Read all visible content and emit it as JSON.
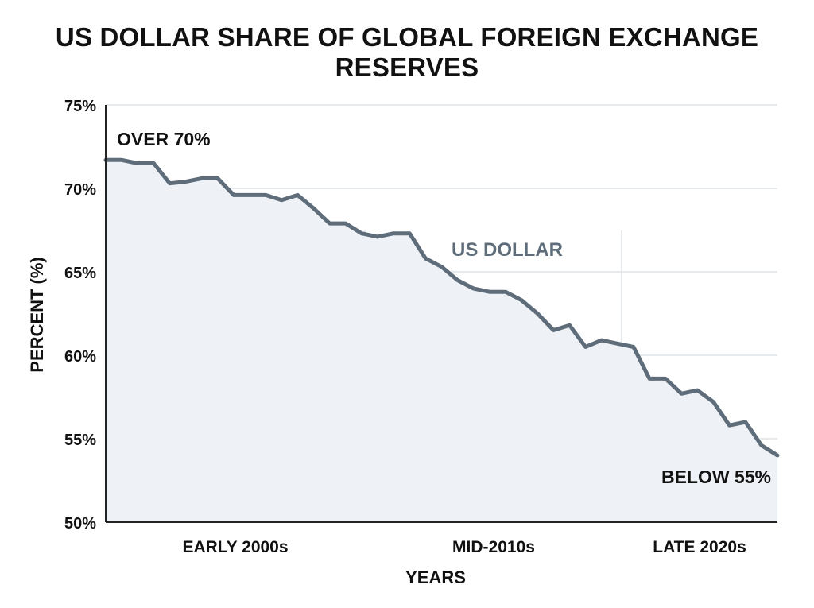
{
  "chart_data": {
    "type": "area",
    "title": "US DOLLAR SHARE OF GLOBAL FOREIGN EXCHANGE RESERVES",
    "xlabel": "YEARS",
    "ylabel": "PERCENT (%)",
    "ylim": [
      50,
      75
    ],
    "yticks": [
      75,
      70,
      65,
      60,
      55,
      50
    ],
    "ytick_labels": [
      "75%",
      "70%",
      "65%",
      "60%",
      "55%",
      "50%"
    ],
    "xtick_labels": [
      "EARLY 2000s",
      "MID-2010s",
      "LATE 2020s"
    ],
    "grid": true,
    "series": [
      {
        "name": "US DOLLAR",
        "color": "#5f6d7b",
        "values": [
          71.7,
          71.7,
          71.5,
          71.5,
          70.3,
          70.4,
          70.6,
          70.6,
          69.6,
          69.6,
          69.6,
          69.3,
          69.6,
          68.8,
          67.9,
          67.9,
          67.3,
          67.1,
          67.3,
          67.3,
          65.8,
          65.3,
          64.5,
          64.0,
          63.8,
          63.8,
          63.3,
          62.5,
          61.5,
          61.8,
          60.5,
          60.9,
          60.7,
          60.5,
          58.6,
          58.6,
          57.7,
          57.9,
          57.2,
          55.8,
          56.0,
          54.6,
          54.0
        ]
      }
    ],
    "annotations": {
      "start": "OVER 70%",
      "end": "BELOW 55%"
    }
  },
  "colors": {
    "line": "#5f6d7b",
    "area_fill": "#eef2f6",
    "grid": "#cfd5db",
    "axis": "#222222"
  }
}
